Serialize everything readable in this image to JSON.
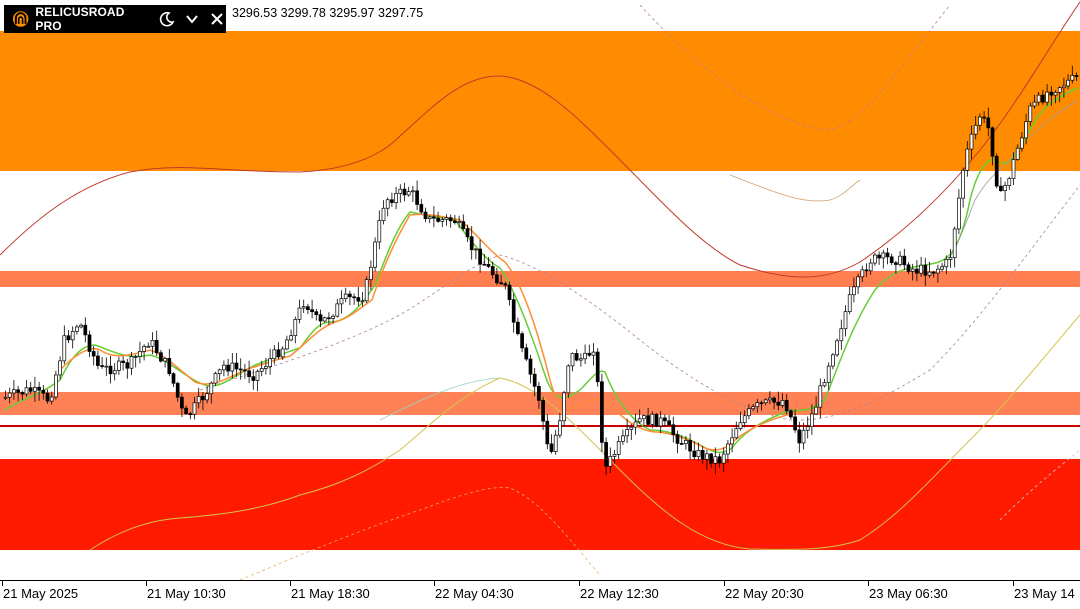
{
  "toolbar": {
    "brand": "RELICUSROAD PRO",
    "icons": [
      "logo-icon",
      "moon-icon",
      "chevron-down-icon",
      "close-icon"
    ]
  },
  "ohlc": {
    "open": "3296.53",
    "high": "3299.78",
    "low": "3295.97",
    "close": "3297.75"
  },
  "colors": {
    "supply_zone": "#ff8c00",
    "demand_zone": "#ff1a00",
    "level_zone": "#ff7f50",
    "support_line": "#cc0000",
    "ma_fast": "#66cc33",
    "ma_slow": "#ff8c33",
    "band": "#cc3333",
    "candle": "#000000"
  },
  "time_axis": [
    "21 May 2025",
    "21 May 10:30",
    "21 May 18:30",
    "22 May 04:30",
    "22 May 12:30",
    "22 May 20:30",
    "23 May 06:30",
    "23 May 14"
  ]
}
